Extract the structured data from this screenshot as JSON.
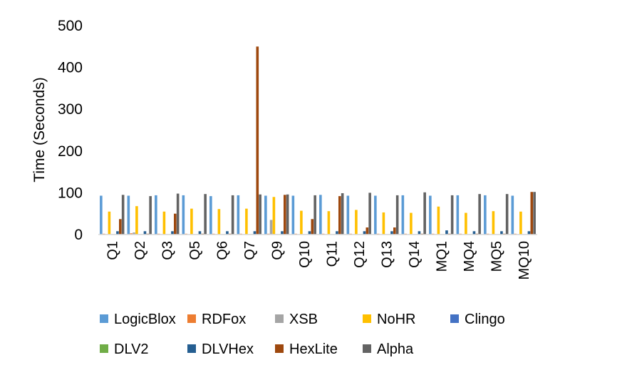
{
  "chart_data": {
    "type": "bar",
    "title": "",
    "xlabel": "",
    "ylabel": "Time (Seconds)",
    "ylim": [
      0,
      500
    ],
    "yticks": [
      0,
      100,
      200,
      300,
      400,
      500
    ],
    "grid": false,
    "legend_position": "bottom",
    "categories": [
      "Q1",
      "Q2",
      "Q3",
      "Q5",
      "Q6",
      "Q7",
      "Q9",
      "Q10",
      "Q11",
      "Q12",
      "Q13",
      "Q14",
      "MQ1",
      "MQ4",
      "MQ5",
      "MQ10"
    ],
    "series": [
      {
        "name": "LogicBlox",
        "color": "#5B9BD5",
        "values": [
          93,
          93,
          94,
          94,
          92,
          94,
          93,
          93,
          95,
          93,
          93,
          94,
          93,
          94,
          94,
          93
        ]
      },
      {
        "name": "RDFox",
        "color": "#ED7D31",
        "values": [
          2,
          3,
          2,
          2,
          2,
          2,
          2,
          2,
          2,
          2,
          2,
          2,
          2,
          2,
          2,
          2
        ]
      },
      {
        "name": "XSB",
        "color": "#A5A5A5",
        "values": [
          1,
          5,
          1,
          1,
          1,
          1,
          35,
          1,
          1,
          1,
          1,
          1,
          1,
          1,
          1,
          1
        ]
      },
      {
        "name": "NoHR",
        "color": "#FFC000",
        "values": [
          55,
          68,
          55,
          62,
          61,
          62,
          90,
          57,
          56,
          59,
          53,
          52,
          67,
          52,
          56,
          55
        ]
      },
      {
        "name": "Clingo",
        "color": "#4472C4",
        "values": [
          1,
          1,
          1,
          1,
          1,
          1,
          1,
          1,
          1,
          1,
          1,
          1,
          1,
          1,
          1,
          1
        ]
      },
      {
        "name": "DLV2",
        "color": "#70AD47",
        "values": [
          1,
          1,
          1,
          1,
          1,
          1,
          1,
          1,
          1,
          1,
          1,
          1,
          1,
          1,
          1,
          1
        ]
      },
      {
        "name": "DLVHex",
        "color": "#255E91",
        "values": [
          8,
          8,
          8,
          8,
          8,
          8,
          8,
          8,
          8,
          8,
          8,
          8,
          10,
          8,
          8,
          8
        ]
      },
      {
        "name": "HexLite",
        "color": "#9E480E",
        "values": [
          37,
          2,
          50,
          2,
          2,
          450,
          95,
          37,
          92,
          17,
          17,
          2,
          2,
          2,
          2,
          102
        ]
      },
      {
        "name": "Alpha",
        "color": "#636363",
        "values": [
          95,
          92,
          98,
          97,
          94,
          96,
          96,
          94,
          99,
          100,
          94,
          101,
          94,
          97,
          97,
          102
        ]
      }
    ]
  }
}
